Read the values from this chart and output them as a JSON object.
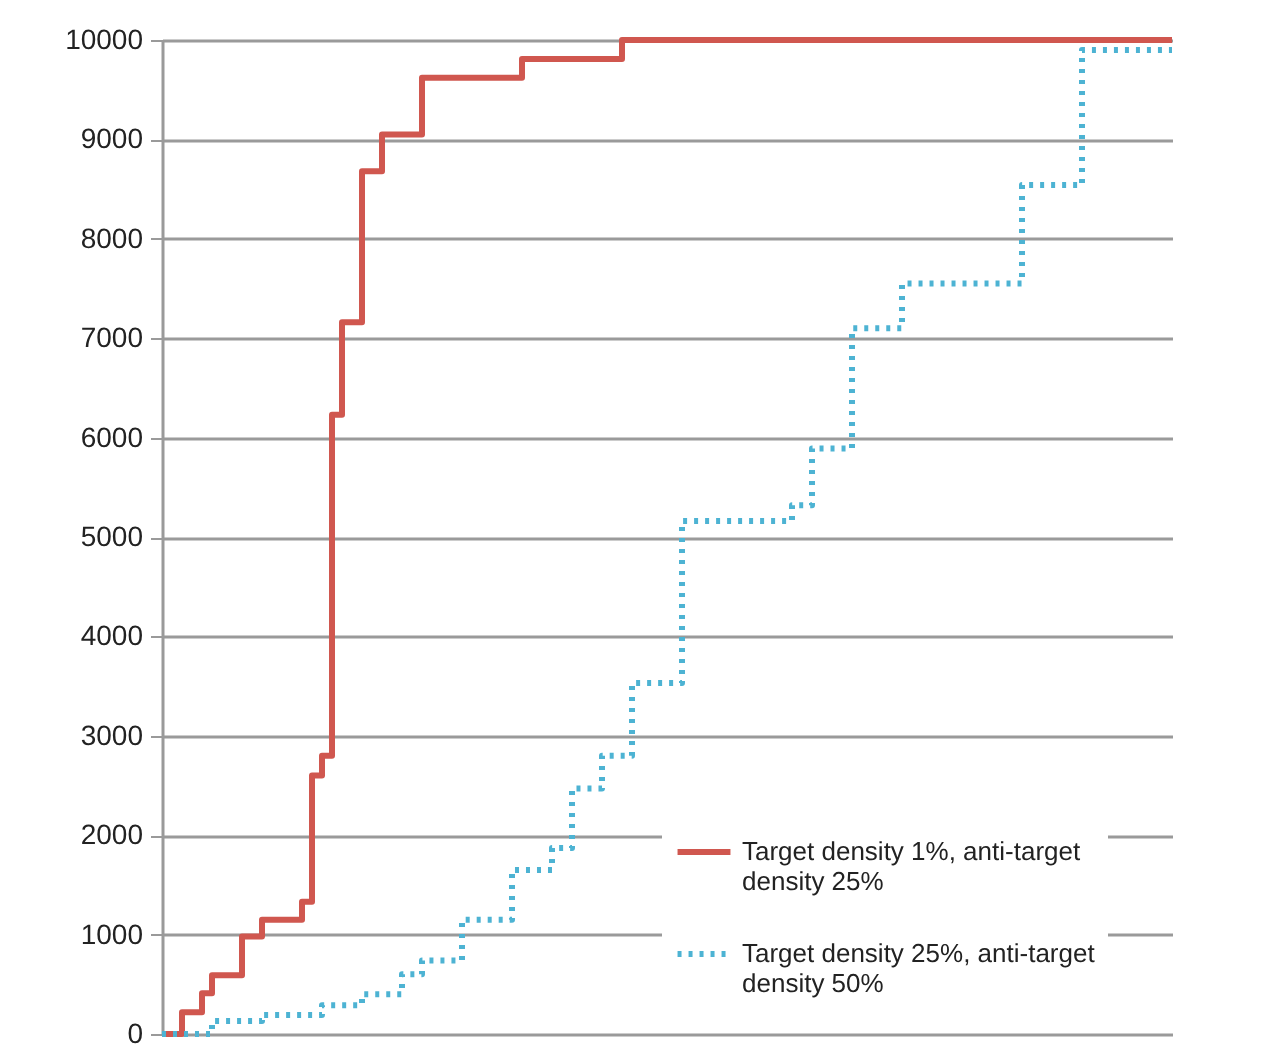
{
  "chart_data": {
    "type": "step",
    "categories": [
      null,
      null,
      null,
      null,
      null,
      null,
      null,
      null,
      null,
      null,
      null,
      null,
      null,
      null,
      null,
      null,
      null,
      null,
      null,
      null,
      null,
      null,
      null,
      null,
      null,
      null,
      null,
      null,
      null,
      null,
      null,
      null,
      null,
      null,
      null,
      null,
      null,
      null,
      null,
      null,
      null,
      null,
      null,
      null,
      null,
      null,
      null,
      null,
      null,
      null,
      null,
      null,
      null,
      null,
      null,
      null,
      null,
      null,
      null,
      null,
      null,
      null,
      null,
      null,
      null,
      null,
      null,
      null,
      null,
      null,
      null,
      null,
      null,
      null,
      null,
      null,
      null,
      null,
      null,
      null,
      null,
      null,
      null,
      null,
      null,
      null,
      null,
      null,
      null,
      null,
      null,
      null,
      null,
      null,
      null,
      null,
      null,
      null,
      null,
      null,
      null,
      null
    ],
    "series": [
      {
        "name": "Target density 1%, anti-target density 25%",
        "color": "#d0574f",
        "line_style": "solid",
        "values": [
          0,
          0,
          220,
          220,
          410,
          590,
          590,
          590,
          980,
          980,
          1150,
          1150,
          1150,
          1150,
          1330,
          2600,
          2800,
          6230,
          7160,
          7160,
          8680,
          8680,
          9050,
          9050,
          9050,
          9050,
          9620,
          9620,
          9620,
          9620,
          9620,
          9620,
          9620,
          9620,
          9620,
          9620,
          9810,
          9810,
          9810,
          9810,
          9810,
          9810,
          9810,
          9810,
          9810,
          9810,
          10000,
          10000,
          10000,
          10000,
          10000,
          10000,
          10000,
          10000,
          10000,
          10000,
          10000,
          10000,
          10000,
          10000,
          10000,
          10000,
          10000,
          10000,
          10000,
          10000,
          10000,
          10000,
          10000,
          10000,
          10000,
          10000,
          10000,
          10000,
          10000,
          10000,
          10000,
          10000,
          10000,
          10000,
          10000,
          10000,
          10000,
          10000,
          10000,
          10000,
          10000,
          10000,
          10000,
          10000,
          10000,
          10000,
          10000,
          10000,
          10000,
          10000,
          10000,
          10000,
          10000,
          10000,
          10000,
          10000
        ]
      },
      {
        "name": "Target density 25%, anti-target density 50%",
        "color": "#4db3d3",
        "line_style": "dotted",
        "values": [
          0,
          0,
          0,
          0,
          0,
          130,
          130,
          130,
          130,
          130,
          190,
          190,
          190,
          190,
          190,
          190,
          290,
          290,
          290,
          290,
          400,
          400,
          400,
          400,
          600,
          600,
          740,
          740,
          740,
          740,
          1150,
          1150,
          1150,
          1150,
          1150,
          1650,
          1650,
          1650,
          1650,
          1870,
          1870,
          2470,
          2470,
          2470,
          2800,
          2800,
          2800,
          3530,
          3530,
          3530,
          3530,
          3530,
          5160,
          5160,
          5160,
          5160,
          5160,
          5160,
          5160,
          5160,
          5160,
          5160,
          5160,
          5320,
          5320,
          5890,
          5890,
          5890,
          5890,
          7100,
          7100,
          7100,
          7100,
          7100,
          7550,
          7550,
          7550,
          7550,
          7550,
          7550,
          7550,
          7550,
          7550,
          7550,
          7550,
          7550,
          8540,
          8540,
          8540,
          8540,
          8540,
          8540,
          9900,
          9900,
          9900,
          9900,
          9900,
          9900,
          9900,
          9900,
          9900,
          9900
        ]
      }
    ],
    "ylim": [
      0,
      10000
    ],
    "yticks": [
      0,
      1000,
      2000,
      3000,
      4000,
      5000,
      6000,
      7000,
      8000,
      9000,
      10000
    ],
    "grid": "y",
    "legend": "bottom right",
    "tick_labels": "y"
  }
}
